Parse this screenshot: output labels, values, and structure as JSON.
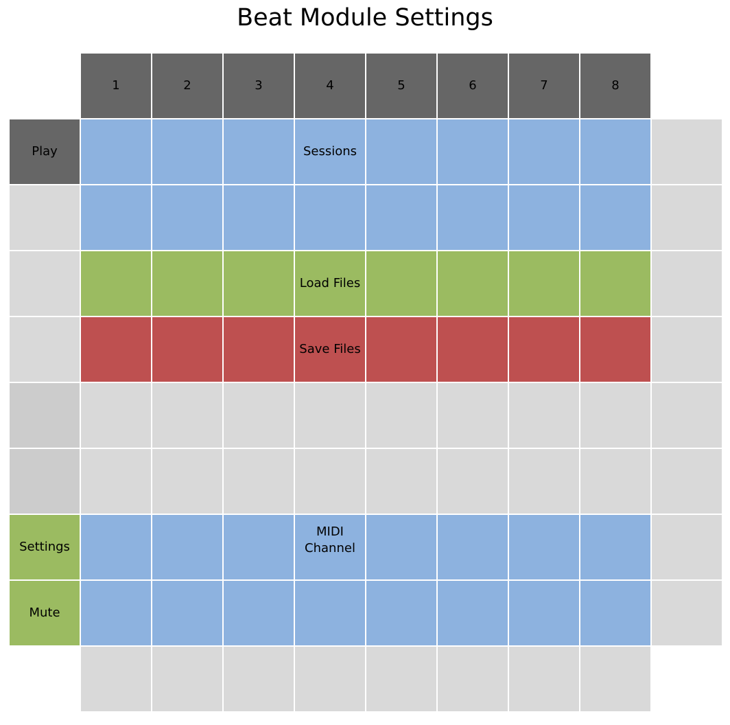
{
  "title": "Beat Module Settings",
  "colors": {
    "header": "#666666",
    "sessions": "#8db2df",
    "load": "#9bbb61",
    "save": "#be5050",
    "empty": "#d9d9d9",
    "side_empty": "#cccccc"
  },
  "column_headers": [
    "1",
    "2",
    "3",
    "4",
    "5",
    "6",
    "7",
    "8"
  ],
  "side_buttons": {
    "play": "Play",
    "settings": "Settings",
    "mute": "Mute"
  },
  "regions": {
    "sessions": "Sessions",
    "load_files": "Load Files",
    "save_files": "Save Files",
    "midi_channel": "MIDI\nChannel"
  },
  "grid": [
    [
      "dark",
      "blue",
      "blue",
      "blue",
      "blue",
      "blue",
      "blue",
      "blue",
      "blue",
      "light"
    ],
    [
      "light",
      "blue",
      "blue",
      "blue",
      "blue",
      "blue",
      "blue",
      "blue",
      "blue",
      "light"
    ],
    [
      "light",
      "green",
      "green",
      "green",
      "green",
      "green",
      "green",
      "green",
      "green",
      "light"
    ],
    [
      "light",
      "red",
      "red",
      "red",
      "red",
      "red",
      "red",
      "red",
      "red",
      "light"
    ],
    [
      "mid",
      "light",
      "light",
      "light",
      "light",
      "light",
      "light",
      "light",
      "light",
      "light"
    ],
    [
      "mid",
      "light",
      "light",
      "light",
      "light",
      "light",
      "light",
      "light",
      "light",
      "light"
    ],
    [
      "green",
      "blue",
      "blue",
      "blue",
      "blue",
      "blue",
      "blue",
      "blue",
      "blue",
      "light"
    ],
    [
      "green",
      "blue",
      "blue",
      "blue",
      "blue",
      "blue",
      "blue",
      "blue",
      "blue",
      "light"
    ],
    [
      "none",
      "light",
      "light",
      "light",
      "light",
      "light",
      "light",
      "light",
      "light",
      "none"
    ]
  ]
}
